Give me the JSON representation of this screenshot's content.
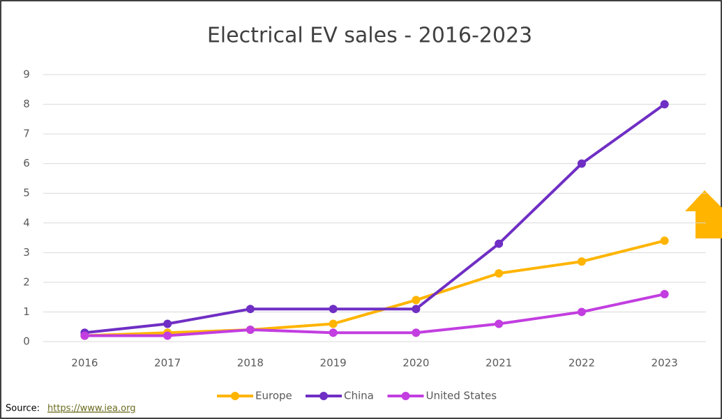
{
  "chart_data": {
    "type": "line",
    "title": "Electrical EV sales - 2016-2023",
    "categories": [
      "2016",
      "2017",
      "2018",
      "2019",
      "2020",
      "2021",
      "2022",
      "2023"
    ],
    "series": [
      {
        "name": "Europe",
        "color": "#ffb400",
        "values": [
          0.2,
          0.3,
          0.4,
          0.6,
          1.4,
          2.3,
          2.7,
          3.4
        ]
      },
      {
        "name": "China",
        "color": "#6f2ec4",
        "values": [
          0.3,
          0.6,
          1.1,
          1.1,
          1.1,
          3.3,
          6.0,
          8.0
        ]
      },
      {
        "name": "United States",
        "color": "#c23ee0",
        "values": [
          0.2,
          0.2,
          0.4,
          0.3,
          0.3,
          0.6,
          1.0,
          1.6
        ]
      }
    ],
    "ylim": [
      0,
      9
    ],
    "yticks": [
      0,
      1,
      2,
      3,
      4,
      5,
      6,
      7,
      8,
      9
    ],
    "grid": true,
    "legend": "bottom",
    "source_label": "Source:",
    "source_url": "https://www.iea.org"
  }
}
